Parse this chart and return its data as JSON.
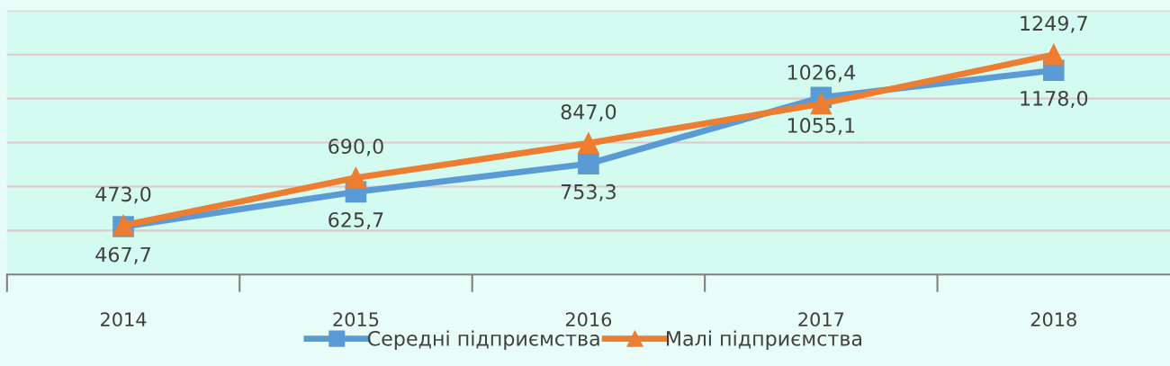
{
  "chart_data": {
    "type": "line",
    "categories": [
      "2014",
      "2015",
      "2016",
      "2017",
      "2018"
    ],
    "series": [
      {
        "name": "Середні підприємства",
        "color": "#5b9bd5",
        "marker": "square",
        "values": [
          467.7,
          625.7,
          753.3,
          1055.1,
          1178.0
        ],
        "value_labels": [
          "467,7",
          "625,7",
          "753,3",
          "1055,1",
          "1178,0"
        ]
      },
      {
        "name": "Малі підприємства",
        "color": "#ed7d31",
        "marker": "triangle",
        "values": [
          473.0,
          690.0,
          847.0,
          1026.4,
          1249.7
        ],
        "value_labels": [
          "473,0",
          "690,0",
          "847,0",
          "1026,4",
          "1249,7"
        ]
      }
    ],
    "ylim": [
      250,
      1450
    ],
    "yticks": [
      {
        "value": 450,
        "label": null
      },
      {
        "value": 650,
        "label": null
      },
      {
        "value": 850,
        "label": null
      },
      {
        "value": 1050,
        "label": null
      },
      {
        "value": 1250,
        "label": null
      },
      {
        "value": 1450,
        "label": null
      }
    ],
    "tick_labels": "x",
    "grid": "y",
    "legend": "bottom",
    "line_style": "solid"
  }
}
